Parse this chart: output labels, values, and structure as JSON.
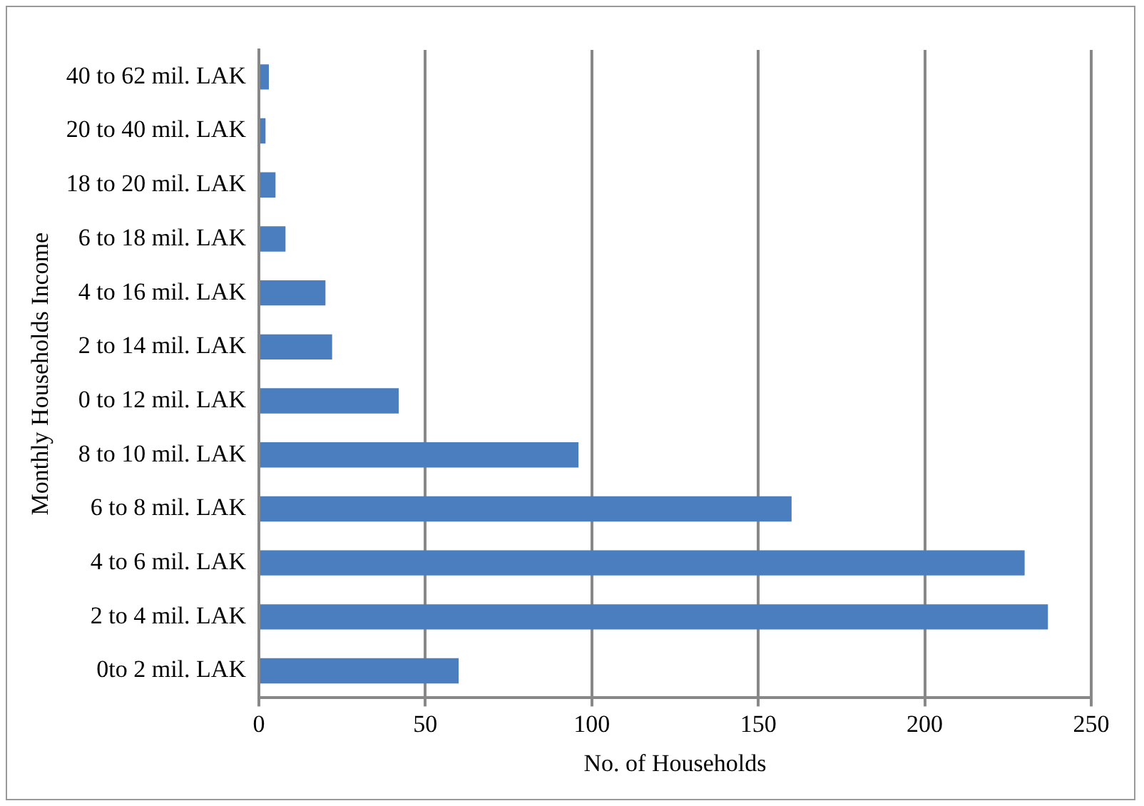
{
  "chart_data": {
    "type": "bar",
    "orientation": "horizontal",
    "categories": [
      "40 to 62 mil. LAK",
      "20 to 40 mil. LAK",
      "18 to 20 mil. LAK",
      "6 to 18 mil. LAK",
      "4 to 16 mil. LAK",
      "2 to 14 mil. LAK",
      "0 to 12 mil. LAK",
      "8 to 10 mil. LAK",
      "6 to 8 mil. LAK",
      "4 to 6 mil. LAK",
      "2 to 4 mil. LAK",
      "0to 2 mil. LAK"
    ],
    "values": [
      3,
      2,
      5,
      8,
      20,
      22,
      42,
      96,
      160,
      230,
      237,
      60
    ],
    "color": "#4a7ebf",
    "xlim": [
      0,
      250
    ],
    "xticks": [
      0,
      50,
      100,
      150,
      200,
      250
    ],
    "grid": "x",
    "xlabel": "No. of Households",
    "ylabel": "Monthly Households Income"
  }
}
